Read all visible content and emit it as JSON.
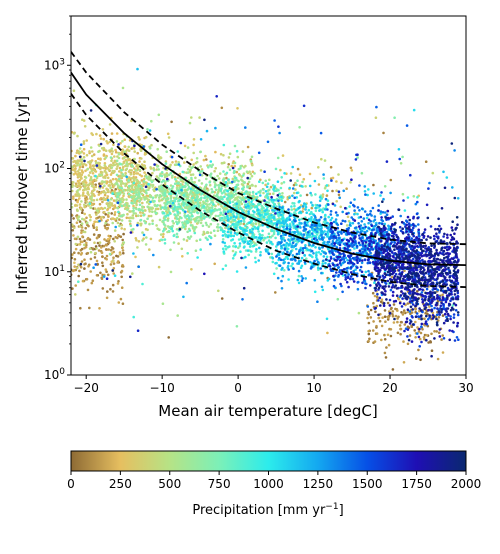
{
  "chart_data": {
    "type": "scatter",
    "xlabel": "Mean air temperature [degC]",
    "ylabel": "Inferred turnover time [yr]",
    "xlim": [
      -22,
      30
    ],
    "ylim": [
      1,
      3000
    ],
    "yscale": "log",
    "x_ticks": [
      -20,
      -10,
      0,
      10,
      20,
      30
    ],
    "x_tick_labels": [
      "−20",
      "−10",
      "0",
      "10",
      "20",
      "30"
    ],
    "y_ticks": [
      1,
      10,
      100,
      1000
    ],
    "y_tick_base": "10",
    "y_tick_exponents": [
      "0",
      "1",
      "2",
      "3"
    ],
    "grid": false,
    "color_by": "Precipitation",
    "colorbar": {
      "label_main": "Precipitation [mm yr",
      "label_exp": "−1",
      "label_end": "]",
      "min": 0,
      "max": 2000,
      "ticks": [
        0,
        250,
        500,
        750,
        1000,
        1250,
        1500,
        1750,
        2000
      ],
      "tick_labels": [
        "0",
        "250",
        "500",
        "750",
        "1000",
        "1250",
        "1500",
        "1750",
        "2000"
      ],
      "colormap_stops": [
        {
          "value": 0,
          "color": "#8d6a34"
        },
        {
          "value": 250,
          "color": "#e6bf60"
        },
        {
          "value": 500,
          "color": "#b6e386"
        },
        {
          "value": 750,
          "color": "#7cf0b8"
        },
        {
          "value": 1000,
          "color": "#2cecec"
        },
        {
          "value": 1250,
          "color": "#14a8f0"
        },
        {
          "value": 1500,
          "color": "#0650e6"
        },
        {
          "value": 1750,
          "color": "#1f0fb4"
        },
        {
          "value": 2000,
          "color": "#0a2870"
        }
      ]
    },
    "fit_curve": {
      "style": "solid",
      "color": "#000000",
      "points": [
        [
          -22,
          850
        ],
        [
          -20,
          520
        ],
        [
          -15,
          220
        ],
        [
          -10,
          110
        ],
        [
          -5,
          62
        ],
        [
          0,
          38
        ],
        [
          5,
          26
        ],
        [
          10,
          19
        ],
        [
          15,
          15
        ],
        [
          20,
          12.8
        ],
        [
          25,
          11.8
        ],
        [
          30,
          11.6
        ]
      ]
    },
    "upper_bound": {
      "style": "dashed",
      "color": "#000000",
      "points": [
        [
          -22,
          1350
        ],
        [
          -20,
          850
        ],
        [
          -15,
          350
        ],
        [
          -10,
          170
        ],
        [
          -5,
          95
        ],
        [
          0,
          58
        ],
        [
          5,
          41
        ],
        [
          10,
          30
        ],
        [
          15,
          24
        ],
        [
          20,
          20.5
        ],
        [
          25,
          18.8
        ],
        [
          30,
          18.5
        ]
      ]
    },
    "lower_bound": {
      "style": "dashed",
      "color": "#000000",
      "points": [
        [
          -22,
          530
        ],
        [
          -20,
          330
        ],
        [
          -15,
          140
        ],
        [
          -10,
          70
        ],
        [
          -5,
          39
        ],
        [
          0,
          24
        ],
        [
          5,
          16
        ],
        [
          10,
          12
        ],
        [
          15,
          9.5
        ],
        [
          20,
          8
        ],
        [
          25,
          7.3
        ],
        [
          30,
          7.1
        ]
      ]
    },
    "point_clusters": [
      {
        "precip_range": [
          0,
          200
        ],
        "x_range": [
          -22,
          -15
        ],
        "y_center": 20,
        "y_spread": 0.45,
        "count": 260
      },
      {
        "precip_range": [
          200,
          400
        ],
        "x_range": [
          -22,
          -12
        ],
        "y_center": 80,
        "y_spread": 0.35,
        "count": 520
      },
      {
        "precip_range": [
          250,
          550
        ],
        "x_range": [
          -22,
          -5
        ],
        "y_center": 60,
        "y_spread": 0.5,
        "count": 420
      },
      {
        "precip_range": [
          400,
          750
        ],
        "x_range": [
          -16,
          2
        ],
        "y_center": 55,
        "y_spread": 0.28,
        "count": 700
      },
      {
        "precip_range": [
          500,
          900
        ],
        "x_range": [
          -10,
          6
        ],
        "y_center": 40,
        "y_spread": 0.25,
        "count": 650
      },
      {
        "precip_range": [
          100,
          500
        ],
        "x_range": [
          -5,
          15
        ],
        "y_center": 60,
        "y_spread": 0.3,
        "count": 140
      },
      {
        "precip_range": [
          750,
          1150
        ],
        "x_range": [
          -2,
          12
        ],
        "y_center": 28,
        "y_spread": 0.28,
        "count": 650
      },
      {
        "precip_range": [
          1000,
          1450
        ],
        "x_range": [
          5,
          20
        ],
        "y_center": 20,
        "y_spread": 0.3,
        "count": 650
      },
      {
        "precip_range": [
          1300,
          1750
        ],
        "x_range": [
          12,
          24
        ],
        "y_center": 16,
        "y_spread": 0.3,
        "count": 600
      },
      {
        "precip_range": [
          1600,
          2000
        ],
        "x_range": [
          18,
          29
        ],
        "y_center": 12,
        "y_spread": 0.32,
        "count": 900
      },
      {
        "precip_range": [
          1400,
          2000
        ],
        "x_range": [
          22,
          29
        ],
        "y_center": 6,
        "y_spread": 0.35,
        "count": 350
      },
      {
        "precip_range": [
          0,
          200
        ],
        "x_range": [
          17,
          27
        ],
        "y_center": 3.5,
        "y_spread": 0.3,
        "count": 220
      },
      {
        "precip_range": [
          0,
          2000
        ],
        "x_range": [
          -22,
          29
        ],
        "y_center": 40,
        "y_spread": 0.85,
        "count": 280
      }
    ]
  }
}
